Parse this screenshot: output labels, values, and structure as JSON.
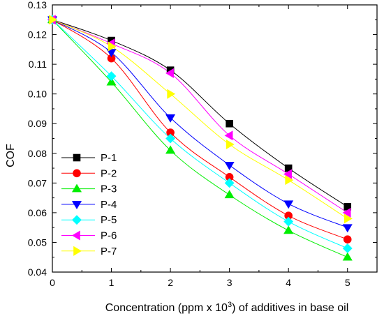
{
  "chart_data": {
    "type": "line",
    "title": "",
    "xlabel_main": "Concentration (ppm x 10",
    "xlabel_sup": "3",
    "xlabel_tail": ") of additives in base oil",
    "ylabel": "COF",
    "xlim": [
      0,
      5.5
    ],
    "ylim": [
      0.04,
      0.13
    ],
    "xticks": [
      0,
      1,
      2,
      3,
      4,
      5
    ],
    "xtick_labels": [
      "0",
      "1",
      "2",
      "3",
      "4",
      "5"
    ],
    "yticks": [
      0.04,
      0.05,
      0.06,
      0.07,
      0.08,
      0.09,
      0.1,
      0.11,
      0.12,
      0.13
    ],
    "ytick_labels": [
      "0.04",
      "0.05",
      "0.06",
      "0.07",
      "0.08",
      "0.09",
      "0.10",
      "0.11",
      "0.12",
      "0.13"
    ],
    "grid": false,
    "legend_position": "bottom-left",
    "x": [
      0,
      1,
      2,
      3,
      4,
      5
    ],
    "series": [
      {
        "name": "P-1",
        "values": [
          0.125,
          0.118,
          0.108,
          0.09,
          0.075,
          0.062
        ],
        "color": "#000000",
        "marker": "square"
      },
      {
        "name": "P-2",
        "values": [
          0.125,
          0.112,
          0.087,
          0.072,
          0.059,
          0.051
        ],
        "color": "#ff0000",
        "marker": "circle"
      },
      {
        "name": "P-3",
        "values": [
          0.125,
          0.104,
          0.081,
          0.066,
          0.054,
          0.045
        ],
        "color": "#00ee00",
        "marker": "triangle-up"
      },
      {
        "name": "P-4",
        "values": [
          0.125,
          0.114,
          0.092,
          0.076,
          0.063,
          0.055
        ],
        "color": "#0000ff",
        "marker": "triangle-down"
      },
      {
        "name": "P-5",
        "values": [
          0.125,
          0.106,
          0.085,
          0.07,
          0.057,
          0.048
        ],
        "color": "#00ffff",
        "marker": "diamond"
      },
      {
        "name": "P-6",
        "values": [
          0.125,
          0.117,
          0.107,
          0.086,
          0.073,
          0.06
        ],
        "color": "#ff00ff",
        "marker": "triangle-left"
      },
      {
        "name": "P-7",
        "values": [
          0.125,
          0.116,
          0.1,
          0.083,
          0.071,
          0.058
        ],
        "color": "#ffff00",
        "marker": "triangle-right"
      }
    ]
  }
}
